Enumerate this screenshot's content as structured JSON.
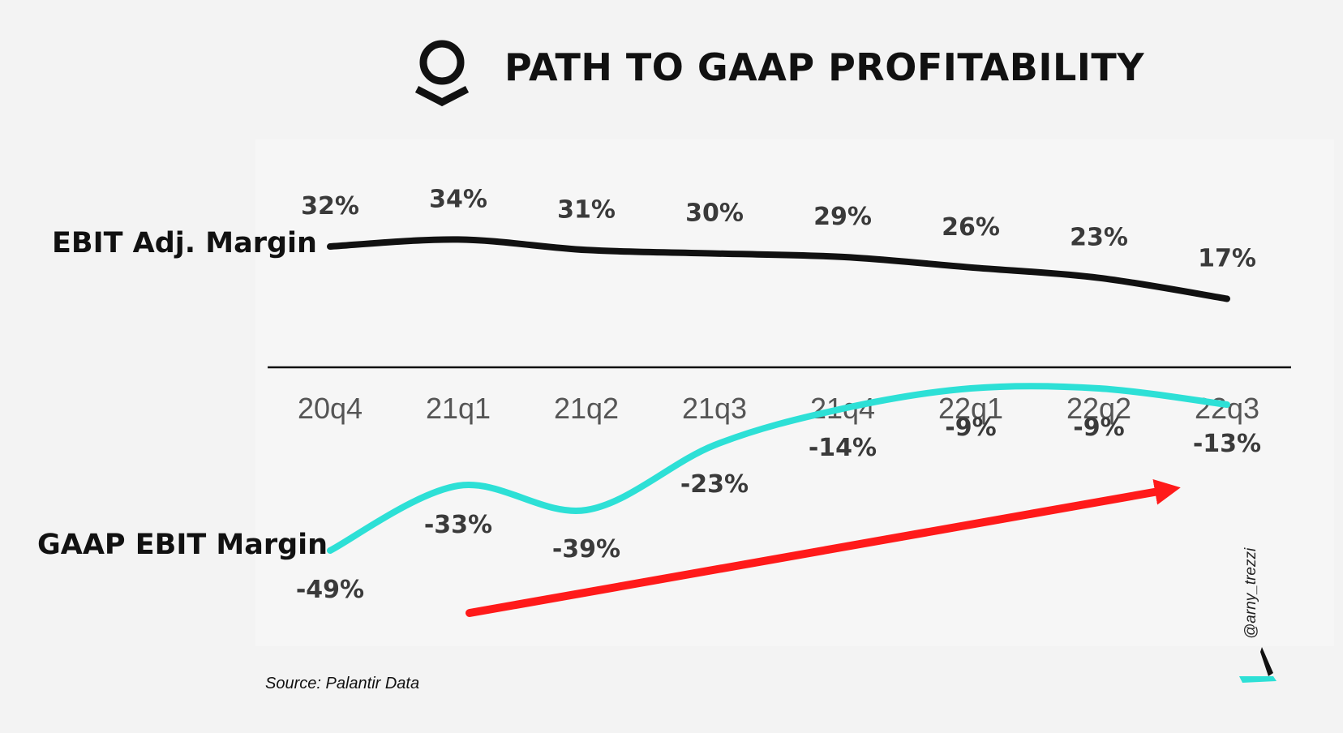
{
  "header": {
    "title": "PATH TO GAAP PROFITABILITY",
    "logo_icon": "palantir-logo-icon"
  },
  "labels": {
    "adj_series": "EBIT Adj. Margin",
    "gaap_series": "GAAP EBIT Margin"
  },
  "footer": {
    "source": "Source: Palantir Data",
    "watermark": "@arny_trezzi",
    "watermark_icon": "arny-trezzi-brand-icon"
  },
  "colors": {
    "background": "#f3f3f3",
    "adj_line": "#111111",
    "gaap_line": "#2de0d6",
    "trend_arrow": "#ff1a1a",
    "axis": "#111111",
    "tick_text": "#555555",
    "value_text": "#3a3a3a"
  },
  "chart_data": {
    "type": "line",
    "categories": [
      "20q4",
      "21q1",
      "21q2",
      "21q3",
      "21q4",
      "22q1",
      "22q2",
      "22q3"
    ],
    "series": [
      {
        "name": "EBIT Adj. Margin",
        "values": [
          32,
          34,
          31,
          30,
          29,
          26,
          23,
          17
        ],
        "value_labels": [
          "32%",
          "34%",
          "31%",
          "30%",
          "29%",
          "26%",
          "23%",
          "17%"
        ]
      },
      {
        "name": "GAAP EBIT Margin",
        "values": [
          -49,
          -33,
          -39,
          -23,
          -14,
          -9,
          -9,
          -13
        ],
        "value_labels": [
          "-49%",
          "-33%",
          "-39%",
          "-23%",
          "-14%",
          "-9%",
          "-9%",
          "-13%"
        ]
      }
    ],
    "ylim": [
      -60,
      45
    ],
    "grid": false,
    "legend": "none",
    "annotations": [
      {
        "type": "trend-arrow",
        "description": "upward trend of GAAP EBIT Margin",
        "from_category": "21q1",
        "to_category": "22q3"
      }
    ]
  }
}
